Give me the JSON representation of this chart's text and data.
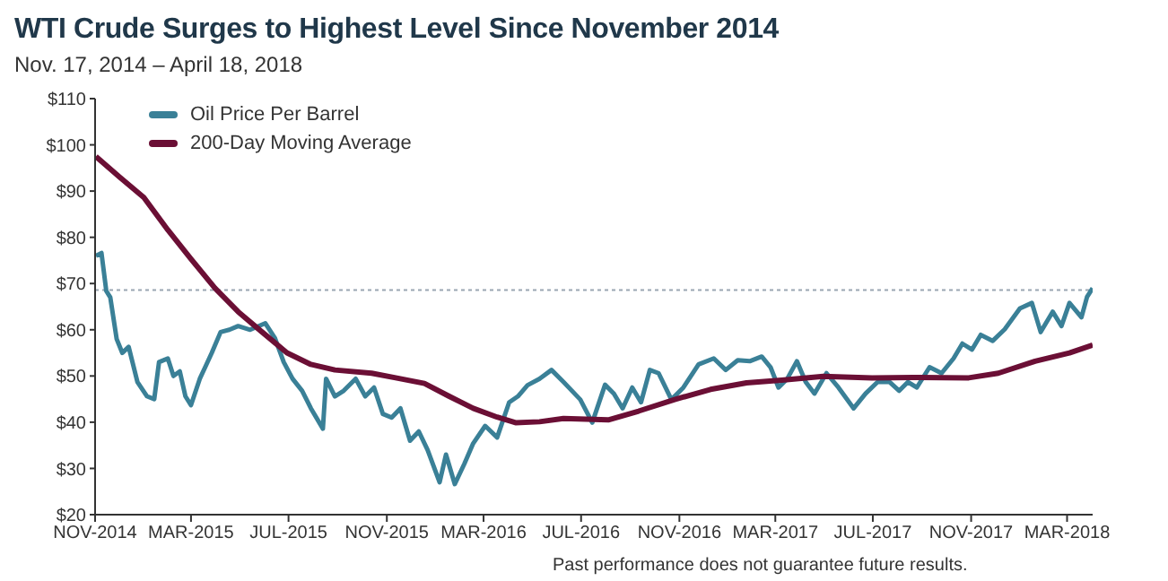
{
  "chart_data": {
    "type": "line",
    "title": "WTI Crude Surges to Highest Level Since November 2014",
    "subtitle": "Nov. 17, 2014 – April 18, 2018",
    "annotations": [
      "Past performance does not guarantee future results."
    ],
    "legend": "top left",
    "grid": false,
    "xlim": [
      "2014-11-17",
      "2018-04-18"
    ],
    "xticks": [
      {
        "value": "2014-11-17",
        "label": "NOV-2014"
      },
      {
        "value": "2015-03-17",
        "label": "MAR-2015"
      },
      {
        "value": "2015-07-17",
        "label": "JUL-2015"
      },
      {
        "value": "2015-11-17",
        "label": "NOV-2015"
      },
      {
        "value": "2016-03-17",
        "label": "MAR-2016"
      },
      {
        "value": "2016-07-17",
        "label": "JUL-2016"
      },
      {
        "value": "2016-11-17",
        "label": "NOV-2016"
      },
      {
        "value": "2017-03-17",
        "label": "MAR-2017"
      },
      {
        "value": "2017-07-17",
        "label": "JUL-2017"
      },
      {
        "value": "2017-11-17",
        "label": "NOV-2017"
      },
      {
        "value": "2018-03-17",
        "label": "MAR-2018"
      }
    ],
    "ylim": [
      20,
      110
    ],
    "yticks": [
      {
        "value": 20,
        "label": "$20"
      },
      {
        "value": 30,
        "label": "$30"
      },
      {
        "value": 40,
        "label": "$40"
      },
      {
        "value": 50,
        "label": "$50"
      },
      {
        "value": 60,
        "label": "$60"
      },
      {
        "value": 70,
        "label": "$70"
      },
      {
        "value": 80,
        "label": "$80"
      },
      {
        "value": 90,
        "label": "$90"
      },
      {
        "value": 100,
        "label": "$100"
      },
      {
        "value": 110,
        "label": "$110"
      }
    ],
    "ref_lines": [
      {
        "axis": "y",
        "value": 68.6,
        "color": "#9aa6b2",
        "line_style": "dotted"
      }
    ],
    "series": [
      {
        "name": "Oil Price Per Barrel",
        "color": "#3a8097",
        "x": [
          "2014-11-18",
          "2014-11-25",
          "2014-12-01",
          "2014-12-06",
          "2014-12-14",
          "2014-12-21",
          "2014-12-29",
          "2015-01-09",
          "2015-01-21",
          "2015-01-30",
          "2015-02-05",
          "2015-02-16",
          "2015-02-23",
          "2015-03-03",
          "2015-03-10",
          "2015-03-17",
          "2015-03-28",
          "2015-04-04",
          "2015-04-12",
          "2015-04-23",
          "2015-05-04",
          "2015-05-15",
          "2015-05-30",
          "2015-06-18",
          "2015-06-30",
          "2015-07-11",
          "2015-07-22",
          "2015-08-03",
          "2015-08-14",
          "2015-08-29",
          "2015-09-02",
          "2015-09-13",
          "2015-09-24",
          "2015-10-09",
          "2015-10-21",
          "2015-11-01",
          "2015-11-12",
          "2015-11-23",
          "2015-12-04",
          "2015-12-16",
          "2015-12-27",
          "2016-01-07",
          "2016-01-22",
          "2016-01-30",
          "2016-02-10",
          "2016-02-22",
          "2016-03-04",
          "2016-03-19",
          "2016-04-03",
          "2016-04-18",
          "2016-04-29",
          "2016-05-11",
          "2016-05-26",
          "2016-06-10",
          "2016-06-25",
          "2016-07-16",
          "2016-07-31",
          "2016-08-16",
          "2016-08-27",
          "2016-09-07",
          "2016-09-19",
          "2016-09-30",
          "2016-10-11",
          "2016-10-22",
          "2016-11-07",
          "2016-11-22",
          "2016-12-11",
          "2016-12-30",
          "2017-01-14",
          "2017-01-29",
          "2017-02-13",
          "2017-02-28",
          "2017-03-11",
          "2017-03-21",
          "2017-04-01",
          "2017-04-13",
          "2017-04-24",
          "2017-05-05",
          "2017-05-20",
          "2017-06-04",
          "2017-06-23",
          "2017-07-08",
          "2017-07-23",
          "2017-08-07",
          "2017-08-19",
          "2017-08-30",
          "2017-09-10",
          "2017-09-26",
          "2017-10-11",
          "2017-10-26",
          "2017-11-06",
          "2017-11-18",
          "2017-11-29",
          "2017-12-14",
          "2017-12-29",
          "2018-01-17",
          "2018-02-01",
          "2018-02-12",
          "2018-02-27",
          "2018-03-10",
          "2018-03-20",
          "2018-04-04",
          "2018-04-11",
          "2018-04-18"
        ],
        "values": [
          76,
          76.6,
          68.4,
          67,
          58,
          55,
          56.3,
          48.7,
          45.6,
          45,
          53,
          53.8,
          50,
          51,
          45.6,
          43.7,
          49.4,
          52,
          55,
          59.5,
          60,
          60.8,
          60,
          61.4,
          58.2,
          53,
          49.4,
          46.8,
          43,
          38.6,
          49.4,
          45.6,
          46.8,
          49.4,
          45.6,
          47.5,
          41.8,
          41,
          43,
          36,
          38,
          34,
          27,
          33,
          26.6,
          31,
          35.4,
          39.2,
          36.7,
          44.3,
          45.6,
          48,
          49.4,
          51.3,
          48.7,
          44.9,
          39.9,
          48.1,
          46.2,
          43,
          47.5,
          44.3,
          51.3,
          50.6,
          44.9,
          47.5,
          52.5,
          53.8,
          51.3,
          53.4,
          53.2,
          54.2,
          51.9,
          47.5,
          49.4,
          53.2,
          48.7,
          46.2,
          50.6,
          47.5,
          43,
          46.2,
          48.7,
          48.7,
          46.8,
          48.7,
          47.5,
          51.9,
          50.6,
          53.8,
          57,
          55.7,
          58.9,
          57.6,
          60.1,
          64.6,
          65.8,
          59.5,
          63.9,
          60.8,
          65.8,
          62.7,
          67.1,
          69
        ]
      },
      {
        "name": "200-Day Moving Average",
        "color": "#6b0f35",
        "x": [
          "2014-11-18",
          "2014-12-18",
          "2015-01-17",
          "2015-02-16",
          "2015-03-17",
          "2015-04-16",
          "2015-05-15",
          "2015-06-14",
          "2015-07-15",
          "2015-08-14",
          "2015-09-13",
          "2015-10-29",
          "2015-11-28",
          "2016-01-03",
          "2016-02-03",
          "2016-03-04",
          "2016-04-03",
          "2016-04-26",
          "2016-05-26",
          "2016-06-25",
          "2016-08-20",
          "2016-09-27",
          "2016-11-11",
          "2016-12-26",
          "2017-02-09",
          "2017-03-25",
          "2017-05-16",
          "2017-07-16",
          "2017-09-14",
          "2017-11-14",
          "2017-12-21",
          "2018-02-05",
          "2018-03-20",
          "2018-04-18"
        ],
        "values": [
          97.5,
          93,
          88.6,
          81.6,
          75.3,
          69,
          63.9,
          59.5,
          55,
          52.5,
          51.3,
          50.6,
          49.6,
          48.4,
          45.6,
          43,
          41.1,
          39.9,
          40.1,
          40.8,
          40.5,
          42.4,
          44.9,
          47.1,
          48.5,
          49.1,
          49.9,
          49.6,
          49.7,
          49.6,
          50.6,
          53.2,
          55,
          56.7
        ]
      }
    ]
  }
}
